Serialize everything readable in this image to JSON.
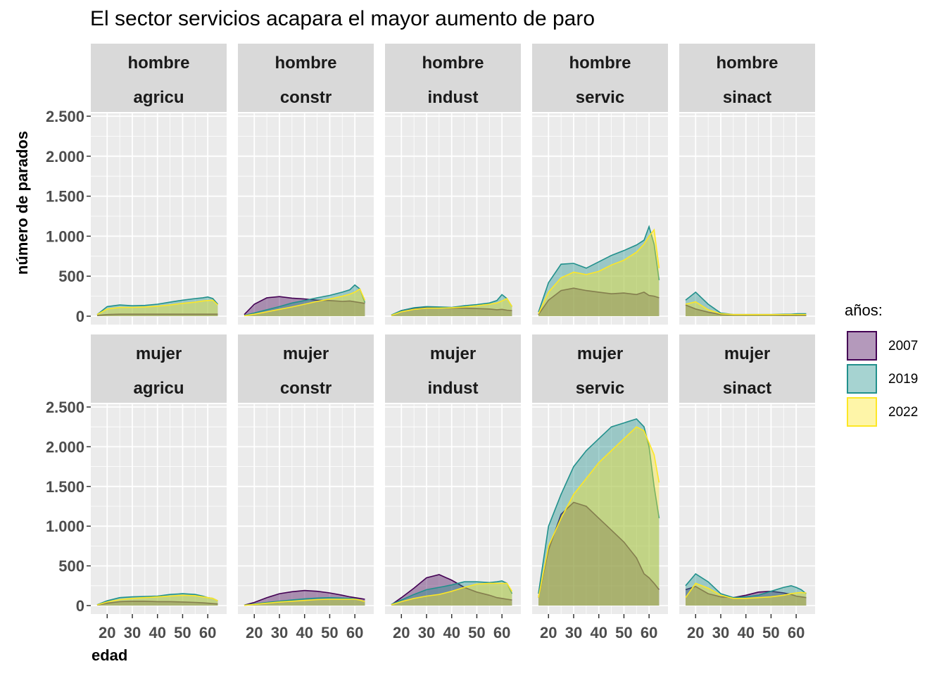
{
  "title": "El sector servicios acapara el mayor aumento de paro",
  "colors": {
    "2007": "#440154",
    "2019": "#21908C",
    "2022": "#FDE725",
    "panel_bg": "#EBEBEB",
    "strip_bg": "#D9D9D9",
    "grid": "#FFFFFF"
  },
  "chart_data": {
    "type": "area",
    "title": "El sector servicios acapara el mayor aumento de paro",
    "xlabel": "edad",
    "ylabel": "número de parados",
    "xlim": [
      16,
      65
    ],
    "ylim": [
      0,
      2500
    ],
    "x_ticks": [
      20,
      30,
      40,
      50,
      60
    ],
    "y_ticks": [
      0,
      500,
      1000,
      1500,
      2000,
      2500
    ],
    "y_tick_labels": [
      "0",
      "500",
      "1.000",
      "1.500",
      "2.000",
      "2.500"
    ],
    "grid": true,
    "legend": {
      "title": "años:",
      "placement": "right",
      "entries": [
        "2007",
        "2019",
        "2022"
      ]
    },
    "ages": [
      16,
      20,
      25,
      30,
      35,
      40,
      45,
      50,
      55,
      58,
      60,
      62,
      64
    ],
    "panels": [
      {
        "sexo": "hombre",
        "sector": "agricu",
        "series": [
          {
            "name": "2007",
            "values": [
              10,
              20,
              25,
              25,
              25,
              25,
              25,
              25,
              25,
              25,
              25,
              25,
              25
            ]
          },
          {
            "name": "2019",
            "values": [
              20,
              120,
              140,
              130,
              135,
              150,
              175,
              200,
              220,
              230,
              240,
              220,
              150
            ]
          },
          {
            "name": "2022",
            "values": [
              20,
              90,
              110,
              110,
              115,
              125,
              140,
              160,
              175,
              190,
              195,
              200,
              140
            ]
          }
        ]
      },
      {
        "sexo": "hombre",
        "sector": "constr",
        "series": [
          {
            "name": "2007",
            "values": [
              20,
              150,
              230,
              245,
              225,
              215,
              200,
              195,
              185,
              190,
              180,
              170,
              160
            ]
          },
          {
            "name": "2019",
            "values": [
              10,
              40,
              80,
              120,
              165,
              195,
              230,
              260,
              300,
              330,
              390,
              340,
              170
            ]
          },
          {
            "name": "2022",
            "values": [
              5,
              25,
              55,
              85,
              115,
              150,
              185,
              215,
              250,
              275,
              300,
              340,
              200
            ]
          }
        ]
      },
      {
        "sexo": "hombre",
        "sector": "indust",
        "series": [
          {
            "name": "2007",
            "values": [
              10,
              70,
              100,
              110,
              105,
              100,
              100,
              95,
              90,
              80,
              85,
              75,
              70
            ]
          },
          {
            "name": "2019",
            "values": [
              15,
              70,
              105,
              120,
              115,
              110,
              130,
              145,
              165,
              195,
              270,
              220,
              120
            ]
          },
          {
            "name": "2022",
            "values": [
              10,
              55,
              85,
              100,
              100,
              105,
              115,
              130,
              150,
              165,
              190,
              220,
              120
            ]
          }
        ]
      },
      {
        "sexo": "hombre",
        "sector": "servic",
        "series": [
          {
            "name": "2007",
            "values": [
              20,
              200,
              320,
              350,
              320,
              300,
              280,
              290,
              270,
              300,
              260,
              250,
              230
            ]
          },
          {
            "name": "2019",
            "values": [
              50,
              420,
              650,
              660,
              600,
              680,
              760,
              820,
              890,
              950,
              1120,
              900,
              450
            ]
          },
          {
            "name": "2022",
            "values": [
              30,
              300,
              480,
              550,
              520,
              560,
              640,
              700,
              800,
              900,
              1000,
              1080,
              600
            ]
          }
        ]
      },
      {
        "sexo": "hombre",
        "sector": "sinact",
        "series": [
          {
            "name": "2007",
            "values": [
              140,
              90,
              50,
              20,
              15,
              15,
              15,
              15,
              10,
              10,
              10,
              10,
              10
            ]
          },
          {
            "name": "2019",
            "values": [
              200,
              300,
              150,
              40,
              20,
              20,
              20,
              20,
              25,
              25,
              30,
              30,
              30
            ]
          },
          {
            "name": "2022",
            "values": [
              150,
              180,
              80,
              30,
              20,
              20,
              20,
              20,
              20,
              20,
              20,
              20,
              20
            ]
          }
        ]
      },
      {
        "sexo": "mujer",
        "sector": "agricu",
        "series": [
          {
            "name": "2007",
            "values": [
              5,
              30,
              50,
              55,
              55,
              50,
              50,
              45,
              40,
              35,
              30,
              25,
              20
            ]
          },
          {
            "name": "2019",
            "values": [
              10,
              60,
              100,
              110,
              115,
              120,
              140,
              150,
              140,
              120,
              100,
              90,
              60
            ]
          },
          {
            "name": "2022",
            "values": [
              8,
              45,
              75,
              90,
              100,
              110,
              120,
              130,
              125,
              110,
              100,
              90,
              60
            ]
          }
        ]
      },
      {
        "sexo": "mujer",
        "sector": "constr",
        "series": [
          {
            "name": "2007",
            "values": [
              5,
              40,
              100,
              150,
              175,
              190,
              180,
              160,
              130,
              110,
              100,
              90,
              80
            ]
          },
          {
            "name": "2019",
            "values": [
              5,
              20,
              40,
              55,
              70,
              85,
              95,
              100,
              95,
              90,
              85,
              70,
              50
            ]
          },
          {
            "name": "2022",
            "values": [
              3,
              15,
              30,
              45,
              55,
              65,
              75,
              80,
              80,
              80,
              80,
              70,
              50
            ]
          }
        ]
      },
      {
        "sexo": "mujer",
        "sector": "indust",
        "series": [
          {
            "name": "2007",
            "values": [
              10,
              100,
              220,
              350,
              390,
              320,
              230,
              170,
              130,
              100,
              90,
              80,
              70
            ]
          },
          {
            "name": "2019",
            "values": [
              15,
              70,
              140,
              200,
              230,
              260,
              300,
              300,
              290,
              300,
              310,
              280,
              150
            ]
          },
          {
            "name": "2022",
            "values": [
              10,
              50,
              90,
              120,
              140,
              180,
              230,
              270,
              280,
              280,
              280,
              280,
              180
            ]
          }
        ]
      },
      {
        "sexo": "mujer",
        "sector": "servic",
        "series": [
          {
            "name": "2007",
            "values": [
              100,
              700,
              1150,
              1300,
              1250,
              1100,
              950,
              800,
              600,
              400,
              350,
              280,
              200
            ]
          },
          {
            "name": "2019",
            "values": [
              150,
              1000,
              1400,
              1750,
              1950,
              2100,
              2250,
              2300,
              2350,
              2250,
              2000,
              1500,
              1100
            ]
          },
          {
            "name": "2022",
            "values": [
              100,
              750,
              1100,
              1400,
              1600,
              1800,
              1950,
              2100,
              2250,
              2200,
              2050,
              1900,
              1550
            ]
          }
        ]
      },
      {
        "sexo": "mujer",
        "sector": "sinact",
        "series": [
          {
            "name": "2007",
            "values": [
              200,
              240,
              150,
              110,
              100,
              130,
              170,
              180,
              160,
              140,
              120,
              110,
              100
            ]
          },
          {
            "name": "2019",
            "values": [
              250,
              400,
              300,
              150,
              100,
              110,
              130,
              180,
              230,
              250,
              230,
              200,
              150
            ]
          },
          {
            "name": "2022",
            "values": [
              100,
              280,
              220,
              130,
              90,
              90,
              100,
              110,
              130,
              150,
              160,
              165,
              160
            ]
          }
        ]
      }
    ]
  }
}
